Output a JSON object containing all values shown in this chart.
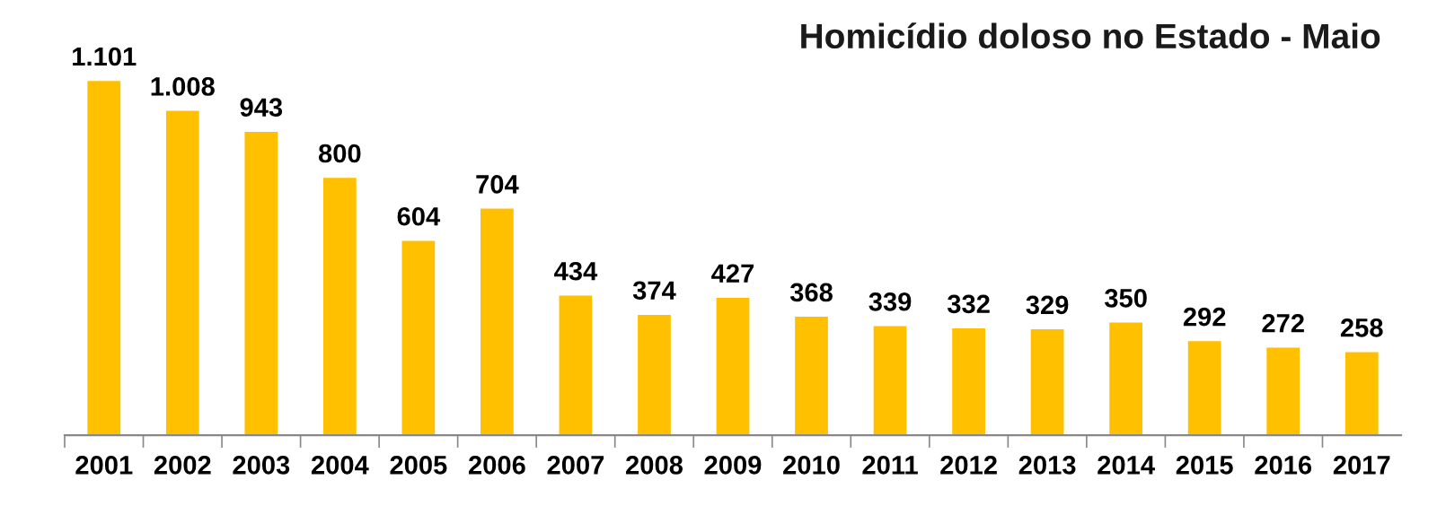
{
  "chart_data": {
    "type": "bar",
    "title": "Homicídio doloso no Estado - Maio",
    "categories": [
      "2001",
      "2002",
      "2003",
      "2004",
      "2005",
      "2006",
      "2007",
      "2008",
      "2009",
      "2010",
      "2011",
      "2012",
      "2013",
      "2014",
      "2015",
      "2016",
      "2017"
    ],
    "values": [
      1101,
      1008,
      943,
      800,
      604,
      704,
      434,
      374,
      427,
      368,
      339,
      332,
      329,
      350,
      292,
      272,
      258
    ],
    "value_labels": [
      "1.101",
      "1.008",
      "943",
      "800",
      "604",
      "704",
      "434",
      "374",
      "427",
      "368",
      "339",
      "332",
      "329",
      "350",
      "292",
      "272",
      "258"
    ],
    "color": "#ffc000"
  }
}
